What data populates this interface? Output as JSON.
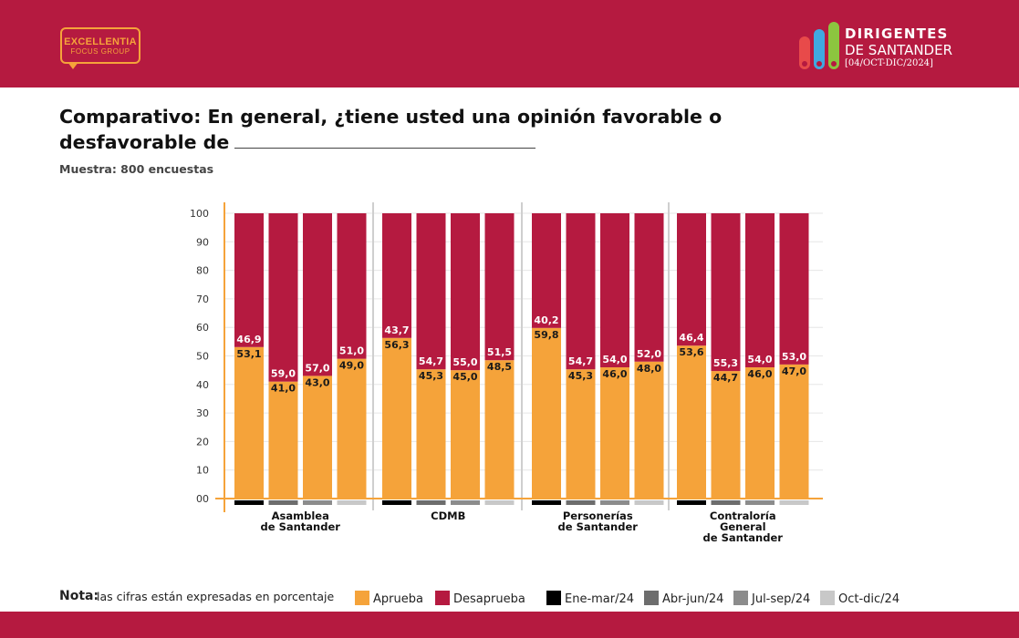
{
  "header": {
    "left_logo": {
      "name": "EXCELLENTIA",
      "sub": "FOCUS GROUP"
    },
    "right_logo": {
      "line1": "DIRIGENTES",
      "line2": "DE SANTANDER",
      "line3": "[04/OCT-DIC/2024]"
    },
    "colors": {
      "band": "#b51a40",
      "pill_red": "#e84a4a",
      "pill_blue": "#3fa9e0",
      "pill_green": "#8cc63f",
      "logo_orange": "#f5a33a"
    }
  },
  "title": "Comparativo: En general, ¿tiene usted una opinión favorable o desfavorable de",
  "sample": "Muestra: 800 encuestas",
  "chart_data": {
    "type": "bar",
    "stacked": true,
    "groups": [
      {
        "label": [
          "Asamblea",
          "de Santander"
        ],
        "aprueba": [
          53.1,
          41.0,
          43.0,
          49.0
        ],
        "desaprueba": [
          46.9,
          59.0,
          57.0,
          51.0
        ],
        "aprueba_labels": [
          "53,1",
          "41,0",
          "43,0",
          "49,0"
        ],
        "desaprueba_labels": [
          "46,9",
          "59,0",
          "57,0",
          "51,0"
        ]
      },
      {
        "label": [
          "CDMB"
        ],
        "aprueba": [
          56.3,
          45.3,
          45.0,
          48.5
        ],
        "desaprueba": [
          43.7,
          54.7,
          55.0,
          51.5
        ],
        "aprueba_labels": [
          "56,3",
          "45,3",
          "45,0",
          "48,5"
        ],
        "desaprueba_labels": [
          "43,7",
          "54,7",
          "55,0",
          "51,5"
        ]
      },
      {
        "label": [
          "Personerías",
          "de Santander"
        ],
        "aprueba": [
          59.8,
          45.3,
          46.0,
          48.0
        ],
        "desaprueba": [
          40.2,
          54.7,
          54.0,
          52.0
        ],
        "aprueba_labels": [
          "59,8",
          "45,3",
          "46,0",
          "48,0"
        ],
        "desaprueba_labels": [
          "40,2",
          "54,7",
          "54,0",
          "52,0"
        ]
      },
      {
        "label": [
          "Contraloría",
          "General",
          "de Santander"
        ],
        "aprueba": [
          53.6,
          44.7,
          46.0,
          47.0
        ],
        "desaprueba": [
          46.4,
          55.3,
          54.0,
          53.0
        ],
        "aprueba_labels": [
          "53,6",
          "44,7",
          "46,0",
          "47,0"
        ],
        "desaprueba_labels": [
          "46,4",
          "55,3",
          "54,0",
          "53,0"
        ]
      }
    ],
    "periods": [
      "Ene-mar/24",
      "Abr-jun/24",
      "Jul-sep/24",
      "Oct-dic/24"
    ],
    "period_colors": [
      "#000000",
      "#6d6d6d",
      "#8c8c8c",
      "#c8c8c8"
    ],
    "series": [
      {
        "name": "Aprueba",
        "color": "#f5a33a"
      },
      {
        "name": "Desaprueba",
        "color": "#b51a40"
      }
    ],
    "yticks": [
      "00",
      "10",
      "20",
      "30",
      "40",
      "50",
      "60",
      "70",
      "80",
      "90",
      "100"
    ],
    "ylim": [
      0,
      100
    ],
    "grid": true,
    "legend_position": "bottom"
  },
  "legend": {
    "note_label": "Nota:",
    "note_text": "las cifras están expresadas en porcentaje"
  }
}
